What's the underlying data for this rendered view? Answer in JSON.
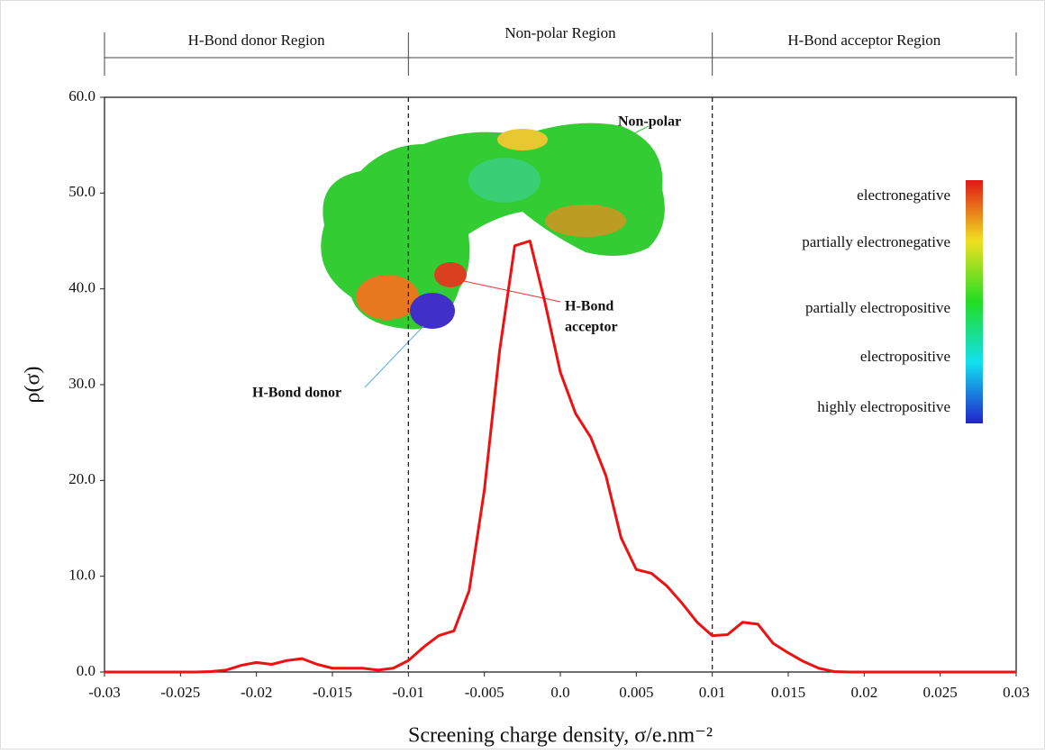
{
  "chart_data": {
    "type": "line",
    "x_label": "Screening charge density, σ/e.nm⁻²",
    "y_label": "ρ(σ)",
    "x": [
      -0.03,
      -0.029,
      -0.028,
      -0.027,
      -0.026,
      -0.025,
      -0.024,
      -0.023,
      -0.022,
      -0.021,
      -0.02,
      -0.019,
      -0.018,
      -0.017,
      -0.016,
      -0.015,
      -0.014,
      -0.013,
      -0.012,
      -0.011,
      -0.01,
      -0.009,
      -0.008,
      -0.007,
      -0.006,
      -0.005,
      -0.004,
      -0.003,
      -0.002,
      -0.001,
      0,
      0.001,
      0.002,
      0.003,
      0.004,
      0.005,
      0.006,
      0.007,
      0.008,
      0.009,
      0.01,
      0.011,
      0.012,
      0.013,
      0.014,
      0.015,
      0.016,
      0.017,
      0.018,
      0.019,
      0.02,
      0.021,
      0.022,
      0.023,
      0.024,
      0.025,
      0.026,
      0.027,
      0.028,
      0.029,
      0.03
    ],
    "series": [
      {
        "color": "#ee1111",
        "values": [
          0,
          0,
          0,
          0,
          0,
          0,
          0,
          0.05,
          0.2,
          0.7,
          1.0,
          0.8,
          1.2,
          1.4,
          0.8,
          0.4,
          0.4,
          0.4,
          0.2,
          0.4,
          1.2,
          2.6,
          3.8,
          4.3,
          8.5,
          19,
          33.5,
          44.5,
          45,
          38.5,
          31.3,
          27,
          24.5,
          20.5,
          14,
          10.7,
          10.3,
          9,
          7.2,
          5.2,
          3.8,
          3.9,
          5.2,
          5,
          3,
          2,
          1.1,
          0.4,
          0.05,
          0,
          0,
          0,
          0,
          0,
          0,
          0,
          0,
          0,
          0,
          0,
          0
        ]
      }
    ],
    "xlim": [
      -0.03,
      0.03
    ],
    "ylim": [
      0,
      60
    ],
    "xticks": [
      -0.03,
      -0.025,
      -0.02,
      -0.015,
      {
        "value": -0.01,
        "label": "-0.01"
      },
      -0.005,
      {
        "value": 0,
        "label": "0.0"
      },
      0.005,
      0.01,
      0.015,
      0.02,
      0.025,
      0.03
    ],
    "yticks": [
      {
        "value": 0,
        "label": "0.0"
      },
      {
        "value": 10,
        "label": "10.0"
      },
      {
        "value": 20,
        "label": "20.0"
      },
      {
        "value": 30,
        "label": "30.0"
      },
      {
        "value": 40,
        "label": "40.0"
      },
      {
        "value": 50,
        "label": "50.0"
      },
      {
        "value": 60,
        "label": "60.0"
      }
    ],
    "region_boundaries": [
      -0.01,
      0.01
    ],
    "regions": [
      "H-Bond donor Region",
      "Non-polar Region",
      "H-Bond acceptor Region"
    ],
    "annotations": {
      "non_polar": "Non-polar",
      "acceptor": [
        "H-Bond",
        "acceptor"
      ],
      "donor": "H-Bond donor"
    },
    "colorbar_labels": [
      "electronegative",
      "partially electronegative",
      "partially electropositive",
      "electropositive",
      "highly electropositive"
    ]
  }
}
